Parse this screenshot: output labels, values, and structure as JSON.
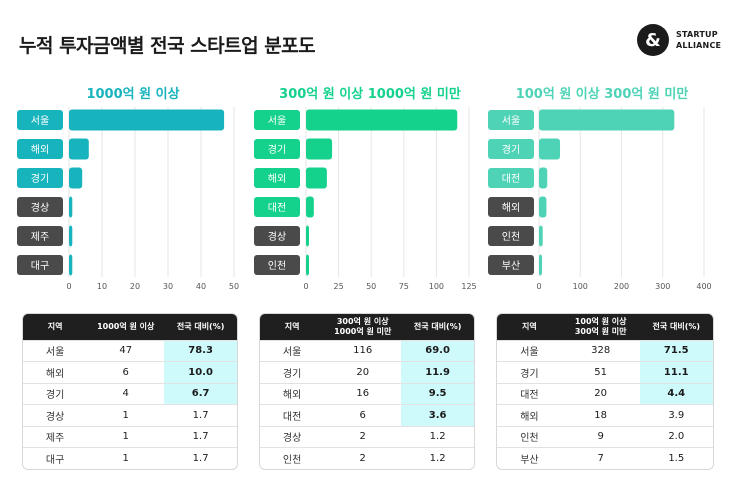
{
  "page": {
    "title": "누적 투자금액별 전국 스타트업 분포도",
    "logo": {
      "line1": "STARTUP",
      "line2": "ALLIANCE",
      "icon": "ampersand-icon"
    }
  },
  "colors": {
    "panel1": "#17b4bd",
    "panel2": "#14d28c",
    "panel3": "#4fd3b6",
    "label_dark": "#4a4a4a",
    "highlight": "#cffafc"
  },
  "chart_data": [
    {
      "type": "bar",
      "orientation": "horizontal",
      "title": "1000억 원 이상",
      "categories": [
        "서울",
        "해외",
        "경기",
        "경상",
        "제주",
        "대구"
      ],
      "values": [
        47,
        6,
        4,
        1,
        1,
        1
      ],
      "ticks": [
        0,
        10,
        20,
        30,
        40,
        50
      ],
      "xlim": [
        0,
        50
      ],
      "grid": true,
      "highlighted": [
        true,
        true,
        true,
        false,
        false,
        false
      ]
    },
    {
      "type": "bar",
      "orientation": "horizontal",
      "title": "300억 원 이상 1000억 원 미만",
      "categories": [
        "서울",
        "경기",
        "해외",
        "대전",
        "경상",
        "인천"
      ],
      "values": [
        116,
        20,
        16,
        6,
        2,
        2
      ],
      "ticks": [
        0,
        25,
        50,
        75,
        100,
        125
      ],
      "xlim": [
        0,
        125
      ],
      "grid": true,
      "highlighted": [
        true,
        true,
        true,
        true,
        false,
        false
      ]
    },
    {
      "type": "bar",
      "orientation": "horizontal",
      "title": "100억 원 이상 300억 원 미만",
      "categories": [
        "서울",
        "경기",
        "대전",
        "해외",
        "인천",
        "부산"
      ],
      "values": [
        328,
        51,
        20,
        18,
        9,
        7
      ],
      "ticks": [
        0,
        100,
        200,
        300,
        400
      ],
      "xlim": [
        0,
        400
      ],
      "grid": true,
      "highlighted": [
        true,
        true,
        true,
        false,
        false,
        false
      ]
    },
    {
      "type": "table",
      "headers": [
        "지역",
        "1000억 원 이상",
        "전국 대비(%)"
      ],
      "rows": [
        [
          "서울",
          "47",
          "78.3"
        ],
        [
          "해외",
          "6",
          "10.0"
        ],
        [
          "경기",
          "4",
          "6.7"
        ],
        [
          "경상",
          "1",
          "1.7"
        ],
        [
          "제주",
          "1",
          "1.7"
        ],
        [
          "대구",
          "1",
          "1.7"
        ]
      ],
      "highlighted_rows": [
        0,
        1,
        2
      ]
    },
    {
      "type": "table",
      "headers": [
        "지역",
        "300억 원 이상\n1000억 원 미만",
        "전국 대비(%)"
      ],
      "rows": [
        [
          "서울",
          "116",
          "69.0"
        ],
        [
          "경기",
          "20",
          "11.9"
        ],
        [
          "해외",
          "16",
          "9.5"
        ],
        [
          "대전",
          "6",
          "3.6"
        ],
        [
          "경상",
          "2",
          "1.2"
        ],
        [
          "인천",
          "2",
          "1.2"
        ]
      ],
      "highlighted_rows": [
        0,
        1,
        2,
        3
      ]
    },
    {
      "type": "table",
      "headers": [
        "지역",
        "100억 원 이상\n300억 원 미만",
        "전국 대비(%)"
      ],
      "rows": [
        [
          "서울",
          "328",
          "71.5"
        ],
        [
          "경기",
          "51",
          "11.1"
        ],
        [
          "대전",
          "20",
          "4.4"
        ],
        [
          "해외",
          "18",
          "3.9"
        ],
        [
          "인천",
          "9",
          "2.0"
        ],
        [
          "부산",
          "7",
          "1.5"
        ]
      ],
      "highlighted_rows": [
        0,
        1,
        2
      ]
    }
  ]
}
